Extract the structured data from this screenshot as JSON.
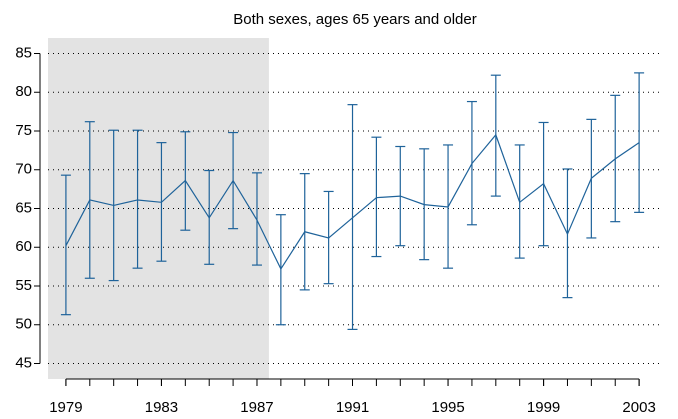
{
  "chart_data": {
    "type": "line",
    "title": "Both sexes, ages 65 years and older",
    "x": [
      1979,
      1980,
      1981,
      1982,
      1983,
      1984,
      1985,
      1986,
      1987,
      1988,
      1989,
      1990,
      1991,
      1992,
      1993,
      1994,
      1995,
      1996,
      1997,
      1998,
      1999,
      2000,
      2001,
      2002,
      2003
    ],
    "series": [
      {
        "color": "#1f639a",
        "values": [
          60.2,
          66.1,
          65.4,
          66.1,
          65.8,
          68.6,
          63.8,
          68.6,
          63.5,
          57.2,
          62.0,
          61.2,
          63.8,
          66.4,
          66.6,
          65.5,
          65.2,
          70.8,
          74.5,
          65.8,
          68.2,
          61.7,
          68.9,
          71.4,
          73.5
        ],
        "lower": [
          51.3,
          56.0,
          55.7,
          57.3,
          58.2,
          62.2,
          57.8,
          62.4,
          57.7,
          50.0,
          54.5,
          55.3,
          49.4,
          58.8,
          60.2,
          58.4,
          57.3,
          62.9,
          66.6,
          58.6,
          60.2,
          53.5,
          61.2,
          63.3,
          64.5
        ],
        "upper": [
          69.3,
          76.2,
          75.1,
          75.1,
          73.5,
          74.9,
          69.9,
          74.8,
          69.6,
          64.2,
          69.5,
          67.2,
          78.4,
          74.2,
          73.0,
          72.7,
          73.2,
          78.8,
          82.2,
          73.2,
          76.1,
          70.1,
          76.5,
          79.6,
          82.5
        ]
      }
    ],
    "xlim": [
      1978.25,
      2004
    ],
    "xticks": [
      1979,
      1983,
      1987,
      1991,
      1995,
      1999,
      2003
    ],
    "ylim": [
      43,
      87
    ],
    "yticks": [
      45,
      50,
      55,
      60,
      65,
      70,
      75,
      80,
      85
    ],
    "grid": true,
    "shaded_range": [
      1978.25,
      1987.5
    ],
    "shade_color": "#e3e3e3"
  }
}
